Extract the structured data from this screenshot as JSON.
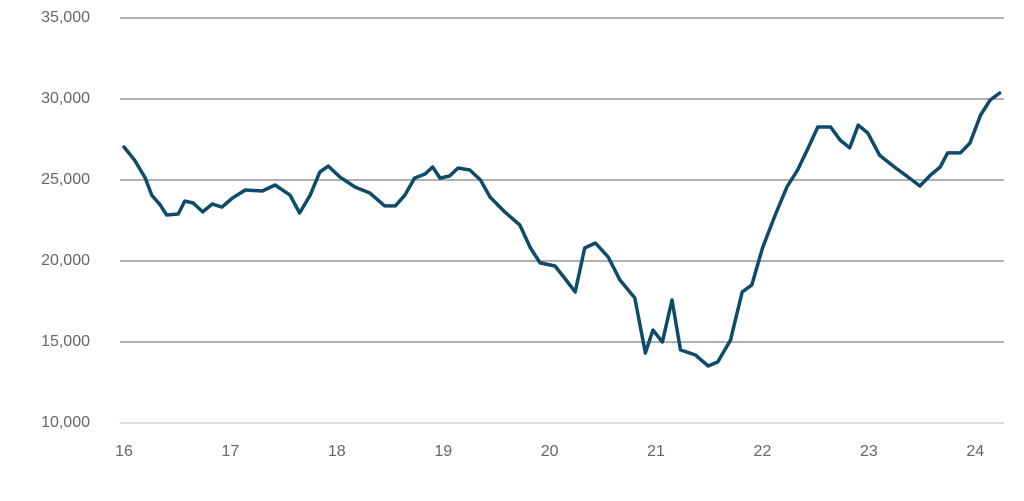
{
  "chart_data": {
    "type": "line",
    "x": [
      16.0,
      16.1,
      16.2,
      16.26,
      16.34,
      16.4,
      16.51,
      16.57,
      16.65,
      16.74,
      16.83,
      16.92,
      17.02,
      17.14,
      17.3,
      17.42,
      17.56,
      17.65,
      17.75,
      17.84,
      17.92,
      18.03,
      18.17,
      18.31,
      18.45,
      18.55,
      18.64,
      18.73,
      18.83,
      18.9,
      18.97,
      19.06,
      19.14,
      19.25,
      19.35,
      19.44,
      19.58,
      19.72,
      19.82,
      19.91,
      20.05,
      20.14,
      20.24,
      20.33,
      20.43,
      20.55,
      20.66,
      20.8,
      20.9,
      20.97,
      21.06,
      21.15,
      21.23,
      21.37,
      21.49,
      21.58,
      21.7,
      21.81,
      21.9,
      22.0,
      22.12,
      22.23,
      22.33,
      22.43,
      22.52,
      22.64,
      22.73,
      22.82,
      22.9,
      22.99,
      23.1,
      23.24,
      23.37,
      23.48,
      23.58,
      23.67,
      23.74,
      23.86,
      23.95,
      24.05,
      24.14,
      24.23
    ],
    "series": [
      {
        "color": "#0e4a6a",
        "values": [
          27040,
          26230,
          25120,
          24070,
          23460,
          22840,
          22900,
          23700,
          23580,
          23030,
          23520,
          23330,
          23890,
          24380,
          24320,
          24690,
          24070,
          22960,
          24070,
          25490,
          25860,
          25180,
          24570,
          24200,
          23400,
          23400,
          24070,
          25120,
          25370,
          25800,
          25120,
          25250,
          25740,
          25620,
          25000,
          23950,
          23020,
          22220,
          20800,
          19880,
          19690,
          18950,
          18090,
          20800,
          21110,
          20250,
          18830,
          17720,
          14320,
          15740,
          15000,
          17590,
          14510,
          14200,
          13520,
          13770,
          15120,
          18090,
          18520,
          20800,
          22840,
          24570,
          25620,
          26980,
          28270,
          28270,
          27470,
          26980,
          28390,
          27900,
          26540,
          25800,
          25180,
          24630,
          25310,
          25800,
          26670,
          26670,
          27280,
          29010,
          29940,
          30370
        ]
      }
    ],
    "xlim": [
      16,
      24.27
    ],
    "xticks": [
      16,
      17,
      18,
      19,
      20,
      21,
      22,
      23,
      24
    ],
    "ylim": [
      10000,
      35000
    ],
    "yticks": [
      {
        "value": 10000,
        "label": "10,000"
      },
      {
        "value": 15000,
        "label": "15,000"
      },
      {
        "value": 20000,
        "label": "20,000"
      },
      {
        "value": 25000,
        "label": "25,000"
      },
      {
        "value": 30000,
        "label": "30,000"
      },
      {
        "value": 35000,
        "label": "35,000"
      }
    ],
    "grid": true
  }
}
